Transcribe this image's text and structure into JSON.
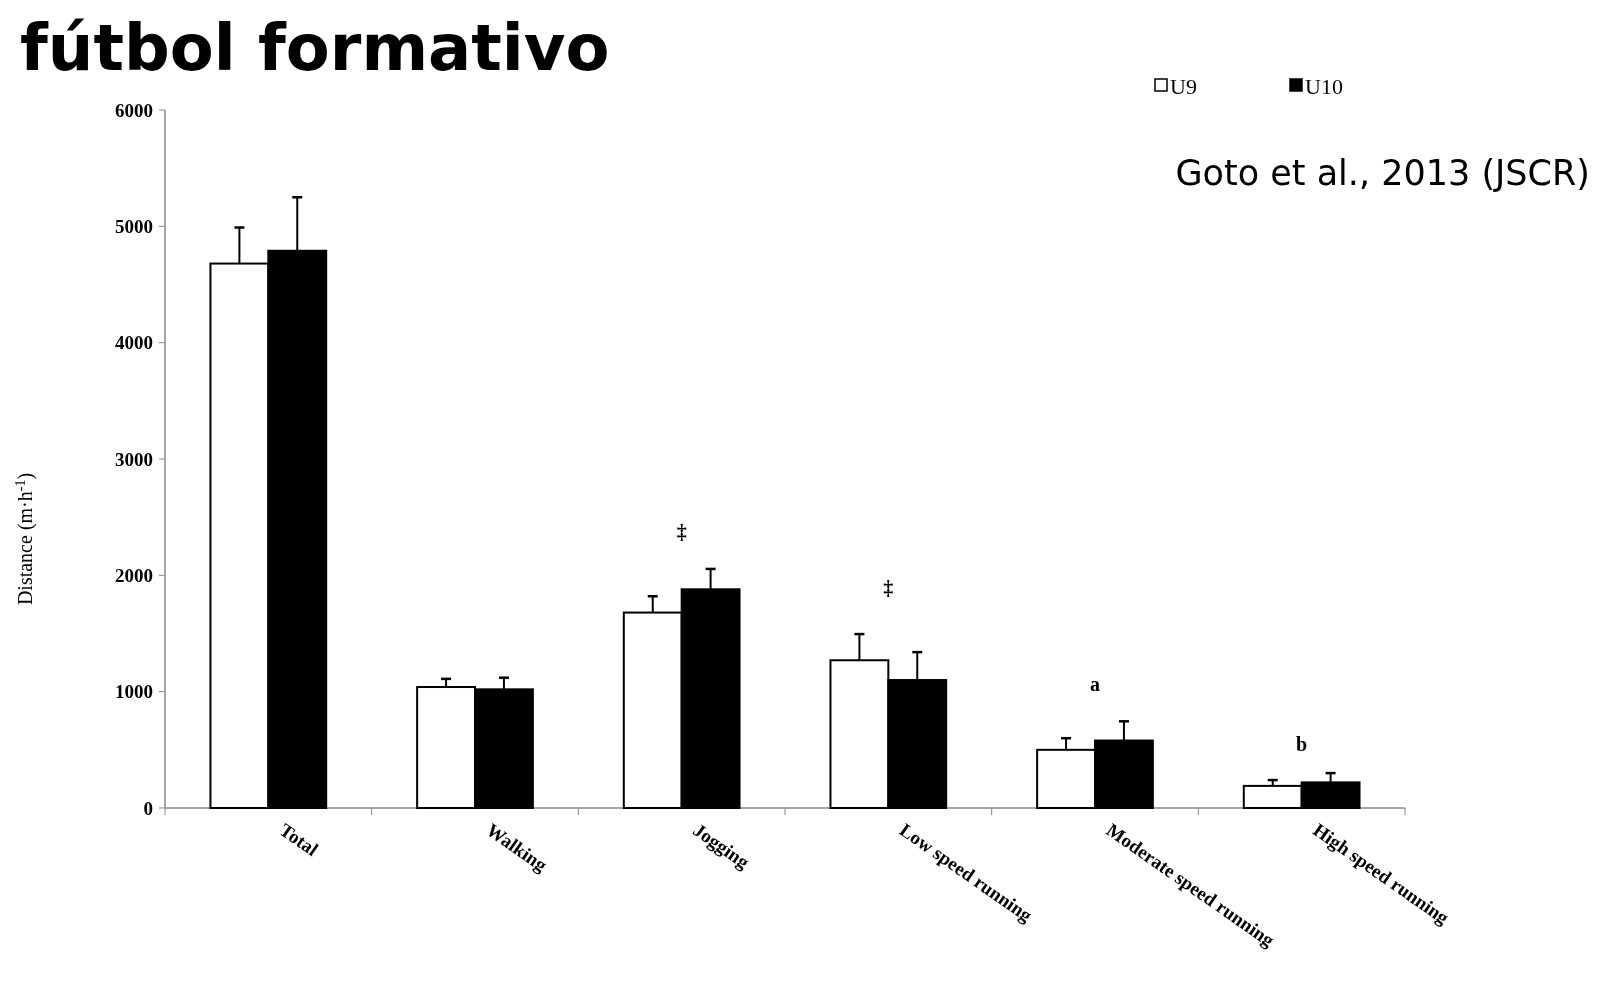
{
  "chart_data": {
    "type": "bar",
    "title": "fútbol formativo",
    "ylabel": "Distance (m·h$^{-1}$)",
    "categories": [
      "Total",
      "Walking",
      "Jogging",
      "Low speed running",
      "Moderate speed running",
      "High speed running"
    ],
    "series": [
      {
        "name": "U9",
        "color": "#ffffff",
        "values": [
          4680,
          1040,
          1680,
          1270,
          500,
          190
        ],
        "errors": [
          310,
          70,
          140,
          225,
          100,
          50
        ]
      },
      {
        "name": "U10",
        "color": "#000000",
        "values": [
          4790,
          1020,
          1880,
          1100,
          580,
          220
        ],
        "errors": [
          460,
          100,
          175,
          240,
          165,
          80
        ]
      }
    ],
    "ylim": [
      0,
      6000
    ],
    "yticks": [
      0,
      1000,
      2000,
      3000,
      4000,
      5000,
      6000
    ],
    "legend": "top right",
    "annotations": [
      "‡",
      "‡",
      "a",
      "b",
      "Goto et al., 2013 (JSCR)"
    ]
  }
}
